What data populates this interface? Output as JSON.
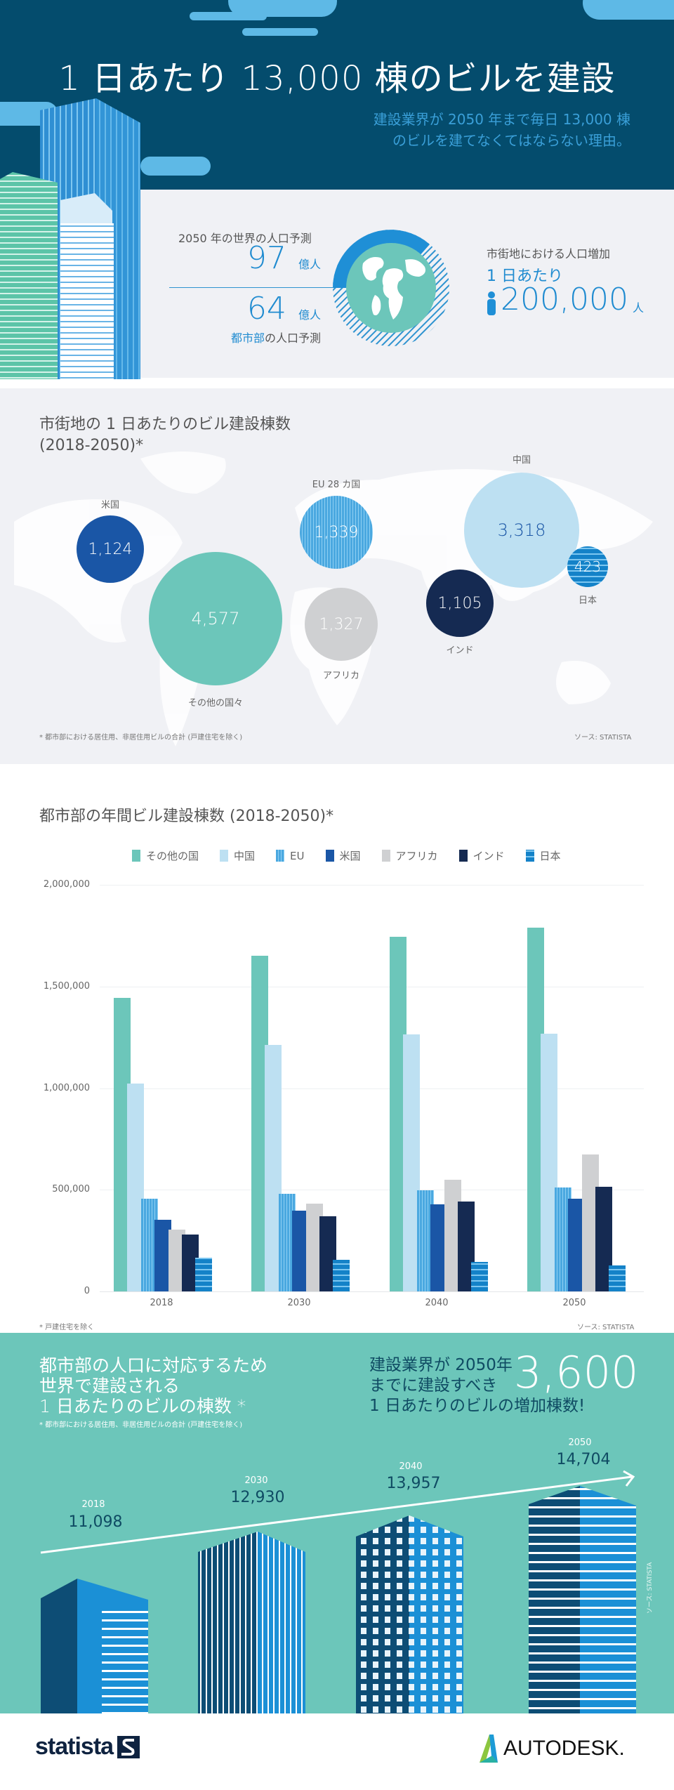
{
  "header": {
    "title": "1 日あたり 13,000 棟のビルを建設",
    "subtitle_line1": "建設業界が 2050 年まで毎日 13,000 棟",
    "subtitle_line2": "のビルを建てなくてはならない理由。"
  },
  "population": {
    "world_label": "2050 年の世界の人口予測",
    "world_value": "97",
    "world_unit": "億人",
    "urban_value": "64",
    "urban_unit": "億人",
    "urban_label_highlight": "都市部",
    "urban_label_rest": "の人口予測",
    "growth_label": "市街地における人口増加",
    "per_day": "1 日あたり",
    "per_day_value": "200,000",
    "per_day_unit": "人",
    "person_icon": "person-icon",
    "globe_icon": "globe-icon"
  },
  "bubble_map": {
    "title_line1": "市街地の 1 日あたりのビル建設棟数",
    "title_line2": "(2018-2050)*",
    "footnote": "* 都市部における居住用、非居住用ビルの合計 (戸建住宅を除く)",
    "source": "ソース: STATISTA",
    "bubbles": [
      {
        "label": "米国",
        "value": "1,124",
        "color": "#1a56a6"
      },
      {
        "label": "その他の国々",
        "value": "4,577",
        "color": "#6cc6ba"
      },
      {
        "label": "EU 28 カ国",
        "value": "1,339",
        "color": "#4aa8e0"
      },
      {
        "label": "アフリカ",
        "value": "1,327",
        "color": "#cfd0d2"
      },
      {
        "label": "中国",
        "value": "3,318",
        "color": "#bde0f2"
      },
      {
        "label": "インド",
        "value": "1,105",
        "color": "#152a52"
      },
      {
        "label": "日本",
        "value": "423",
        "color": "#1482c8"
      }
    ]
  },
  "bar_chart": {
    "title": "都市部の年間ビル建設棟数 (2018-2050)*",
    "footnote": "* 戸建住宅を除く",
    "source": "ソース: STATISTA",
    "y_ticks": [
      "2,000,000",
      "1,500,000",
      "1,000,000",
      "500,000",
      "0"
    ],
    "legend": [
      "その他の国",
      "中国",
      "EU",
      "米国",
      "アフリカ",
      "インド",
      "日本"
    ]
  },
  "chart_data": [
    {
      "type": "bubble",
      "title": "市街地の 1 日あたりのビル建設棟数 (2018-2050)*",
      "categories": [
        "米国",
        "その他の国々",
        "EU 28 カ国",
        "アフリカ",
        "中国",
        "インド",
        "日本"
      ],
      "values": [
        1124,
        4577,
        1339,
        1327,
        3318,
        1105,
        423
      ]
    },
    {
      "type": "bar",
      "title": "都市部の年間ビル建設棟数 (2018-2050)*",
      "categories": [
        "2018",
        "2030",
        "2040",
        "2050"
      ],
      "xlabel": "",
      "ylabel": "",
      "ylim": [
        0,
        2000000
      ],
      "grid": true,
      "legend_position": "top",
      "series": [
        {
          "name": "その他の国",
          "color": "#6cc6ba",
          "values": [
            1444000,
            1650000,
            1745000,
            1790000
          ]
        },
        {
          "name": "中国",
          "color": "#bde0f2",
          "values": [
            1022000,
            1211000,
            1263000,
            1269000
          ]
        },
        {
          "name": "EU",
          "color": "#4aa8e0",
          "values": [
            455000,
            480000,
            498000,
            510000
          ]
        },
        {
          "name": "米国",
          "color": "#1a56a6",
          "values": [
            352000,
            396000,
            428000,
            456000
          ]
        },
        {
          "name": "アフリカ",
          "color": "#cfd0d2",
          "values": [
            303000,
            431000,
            548000,
            674000
          ]
        },
        {
          "name": "インド",
          "color": "#152a52",
          "values": [
            281000,
            371000,
            443000,
            515000
          ]
        },
        {
          "name": "日本",
          "color": "#1482c8",
          "values": [
            166000,
            157000,
            144000,
            129000
          ]
        }
      ]
    },
    {
      "type": "line",
      "title": "都市部の人口に対応するため世界で建設される 1 日あたりのビルの棟数",
      "categories": [
        "2018",
        "2030",
        "2040",
        "2050"
      ],
      "values": [
        11098,
        12930,
        13957,
        14704
      ]
    }
  ],
  "daily_growth": {
    "left_line1": "都市部の人口に対応するため",
    "left_line2": "世界で建設される",
    "left_line3": "1 日あたりのビルの棟数 *",
    "left_footnote": "* 都市部における居住用、非居住用ビルの合計 (戸建住宅を除く)",
    "right_line1": "建設業界が 2050年",
    "right_line2": "までに建設すべき",
    "right_line3": "1 日あたりのビルの増加棟数!",
    "big_number": "3,600",
    "years": [
      {
        "year": "2018",
        "value": "11,098"
      },
      {
        "year": "2030",
        "value": "12,930"
      },
      {
        "year": "2040",
        "value": "13,957"
      },
      {
        "year": "2050",
        "value": "14,704"
      }
    ],
    "side_source": "ソース: STATISTA"
  },
  "footer": {
    "statista": "statista",
    "autodesk": "AUTODESK."
  }
}
